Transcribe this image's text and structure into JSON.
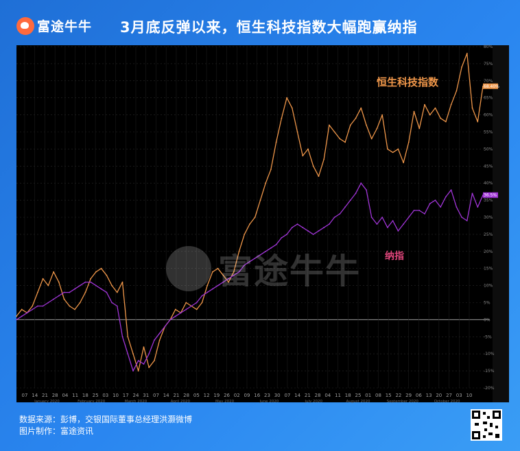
{
  "brand": {
    "name": "富途牛牛"
  },
  "header": {
    "title": "3月底反弹以来，恒生科技指数大幅跑赢纳指"
  },
  "footer": {
    "source": "数据来源：彭博，交银国际董事总经理洪灏微博",
    "maker": "图片制作：富途资讯"
  },
  "colors": {
    "hstech": "#f0974a",
    "nasdaq": "#a135d8",
    "background": "#000000"
  },
  "chart_data": {
    "type": "line",
    "title": "",
    "xlabel": "",
    "ylabel": "",
    "ylim": [
      -20,
      80
    ],
    "y_unit": "%",
    "grid": true,
    "y_ticks": [
      "-20%",
      "-15%",
      "-10%",
      "-5%",
      "0%",
      "5%",
      "10%",
      "15%",
      "20%",
      "25%",
      "30%",
      "35%",
      "40%",
      "45%",
      "50%",
      "55%",
      "60%",
      "65%",
      "70%",
      "75%",
      "80%"
    ],
    "x_ticks": [
      "07",
      "14",
      "21",
      "28",
      "04",
      "11",
      "18",
      "25",
      "03",
      "10",
      "17",
      "24",
      "31",
      "07",
      "14",
      "21",
      "28",
      "05",
      "12",
      "19",
      "26",
      "02",
      "09",
      "16",
      "23",
      "30",
      "07",
      "14",
      "21",
      "28",
      "04",
      "11",
      "18",
      "25",
      "01",
      "08",
      "15",
      "22",
      "29",
      "06",
      "13",
      "20",
      "27",
      "03",
      "10"
    ],
    "month_labels": [
      "January 2020",
      "February 2020",
      "March 2020",
      "April 2020",
      "May 2020",
      "June 2020",
      "July 2020",
      "August 2020",
      "September 2020",
      "October 2020"
    ],
    "series": [
      {
        "name": "恒生科技指数",
        "last_label": "68.40%",
        "values": [
          1,
          3,
          2,
          4,
          8,
          12,
          10,
          14,
          11,
          6,
          4,
          3,
          5,
          8,
          12,
          14,
          15,
          13,
          10,
          8,
          11,
          -5,
          -10,
          -15,
          -8,
          -14,
          -12,
          -6,
          -2,
          0,
          3,
          2,
          5,
          4,
          3,
          5,
          10,
          14,
          15,
          13,
          11,
          14,
          20,
          25,
          28,
          30,
          35,
          40,
          44,
          52,
          59,
          65,
          62,
          55,
          48,
          50,
          45,
          42,
          47,
          57,
          55,
          53,
          52,
          57,
          59,
          62,
          57,
          53,
          56,
          60,
          50,
          49,
          50,
          46,
          52,
          61,
          56,
          63,
          60,
          62,
          59,
          58,
          63,
          67,
          74,
          78,
          62,
          58,
          68.4
        ]
      },
      {
        "name": "纳指",
        "last_label": "36.5%",
        "values": [
          0,
          1,
          2,
          3,
          4,
          4,
          5,
          6,
          7,
          8,
          8,
          9,
          10,
          11,
          11,
          10,
          9,
          8,
          5,
          4,
          -5,
          -10,
          -15,
          -12,
          -13,
          -10,
          -6,
          -4,
          -2,
          0,
          1,
          2,
          3,
          4,
          5,
          7,
          8,
          9,
          10,
          11,
          12,
          13,
          14,
          16,
          17,
          18,
          19,
          20,
          21,
          22,
          24,
          25,
          27,
          28,
          27,
          26,
          25,
          26,
          27,
          28,
          30,
          31,
          33,
          35,
          37,
          40,
          38,
          30,
          28,
          30,
          27,
          29,
          26,
          28,
          30,
          32,
          32,
          31,
          34,
          35,
          33,
          36,
          38,
          33,
          30,
          29,
          37,
          33,
          36.5
        ]
      }
    ],
    "annotations": [
      "恒生科技指数",
      "纳指"
    ]
  }
}
